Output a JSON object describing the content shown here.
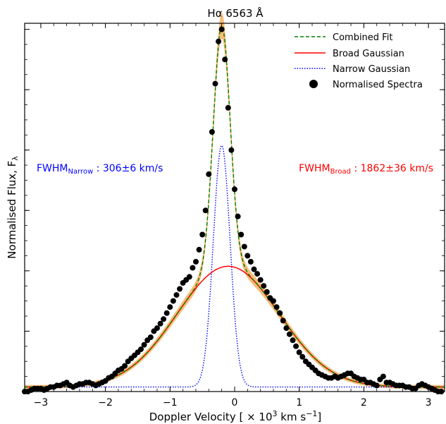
{
  "chart_data": {
    "type": "line",
    "title": "Hα 6563 Å",
    "xlabel_prefix": "Doppler Velocity [ × 10",
    "xlabel_sup": "3",
    "xlabel_suffix": " km s",
    "xlabel_sup2": "−1",
    "xlabel_end": "]",
    "ylabel_main": "Normalised Flux, F",
    "ylabel_sub": "λ",
    "xlim": [
      -3.25,
      3.25
    ],
    "ylim": [
      0.0,
      1.22
    ],
    "x_ticks": [
      -3,
      -2,
      -1,
      0,
      1,
      2,
      3
    ],
    "x_tick_labels": [
      "−3",
      "−2",
      "−1",
      "0",
      "1",
      "2",
      "3"
    ],
    "y_tick_values": [
      0.2,
      0.4,
      0.6,
      0.8,
      1.0,
      1.2
    ],
    "legend": [
      {
        "label": "Combined Fit",
        "color": "#008000",
        "style": "dashed"
      },
      {
        "label": "Broad Gaussian",
        "color": "#ff0000",
        "style": "solid"
      },
      {
        "label": "Narrow Gaussian",
        "color": "#0000ff",
        "style": "dotted"
      },
      {
        "label": "Normalised Spectra",
        "color": "#000000",
        "style": "marker"
      }
    ],
    "legend_position": "top-right",
    "annotations": {
      "narrow": {
        "main": "FWHM",
        "sub": "Narrow",
        "rest": " : 306±6 km/s",
        "color": "#0000ff"
      },
      "broad": {
        "main": "FWHM",
        "sub": "Broad",
        "rest": " : 1862±36 km/s",
        "color": "#ff0000"
      }
    },
    "model": {
      "baseline": 0.015,
      "broad": {
        "center": -0.1,
        "fwhm": 1.862,
        "amplitude": 0.4
      },
      "narrow": {
        "center": -0.2,
        "fwhm": 0.306,
        "amplitude": 0.8
      },
      "uncertainty_band_color": "#f4a040"
    },
    "series": [
      {
        "name": "Normalised Spectra",
        "type": "scatter",
        "x": [
          -3.25,
          -3.2,
          -3.15,
          -3.1,
          -3.05,
          -3.0,
          -2.95,
          -2.9,
          -2.85,
          -2.8,
          -2.75,
          -2.7,
          -2.65,
          -2.6,
          -2.55,
          -2.5,
          -2.45,
          -2.4,
          -2.35,
          -2.3,
          -2.25,
          -2.2,
          -2.15,
          -2.1,
          -2.05,
          -2.0,
          -1.95,
          -1.9,
          -1.85,
          -1.8,
          -1.75,
          -1.7,
          -1.65,
          -1.6,
          -1.55,
          -1.5,
          -1.45,
          -1.4,
          -1.35,
          -1.3,
          -1.25,
          -1.2,
          -1.15,
          -1.1,
          -1.05,
          -1.0,
          -0.95,
          -0.9,
          -0.85,
          -0.8,
          -0.75,
          -0.7,
          -0.65,
          -0.6,
          -0.55,
          -0.5,
          -0.45,
          -0.4,
          -0.35,
          -0.3,
          -0.25,
          -0.2,
          -0.15,
          -0.1,
          -0.05,
          0.0,
          0.05,
          0.1,
          0.15,
          0.2,
          0.25,
          0.3,
          0.35,
          0.4,
          0.45,
          0.5,
          0.55,
          0.6,
          0.65,
          0.7,
          0.75,
          0.8,
          0.85,
          0.9,
          0.95,
          1.0,
          1.05,
          1.1,
          1.15,
          1.2,
          1.25,
          1.3,
          1.35,
          1.4,
          1.45,
          1.5,
          1.55,
          1.6,
          1.65,
          1.7,
          1.75,
          1.8,
          1.85,
          1.9,
          1.95,
          2.0,
          2.05,
          2.1,
          2.15,
          2.2,
          2.25,
          2.3,
          2.35,
          2.4,
          2.45,
          2.5,
          2.55,
          2.6,
          2.65,
          2.7,
          2.75,
          2.8,
          2.85,
          2.9,
          2.95,
          3.0,
          3.05,
          3.1,
          3.15,
          3.2
        ],
        "y": [
          0.0,
          0.0,
          0.005,
          0.01,
          0.01,
          0.01,
          0.005,
          0.01,
          0.015,
          0.015,
          0.02,
          0.02,
          0.025,
          0.03,
          0.02,
          0.015,
          0.02,
          0.025,
          0.025,
          0.03,
          0.03,
          0.025,
          0.02,
          0.025,
          0.03,
          0.035,
          0.045,
          0.05,
          0.06,
          0.07,
          0.075,
          0.085,
          0.1,
          0.11,
          0.12,
          0.13,
          0.14,
          0.155,
          0.17,
          0.18,
          0.2,
          0.21,
          0.225,
          0.24,
          0.26,
          0.28,
          0.3,
          0.32,
          0.34,
          0.36,
          0.37,
          0.38,
          0.41,
          0.43,
          0.47,
          0.52,
          0.6,
          0.72,
          0.86,
          1.02,
          1.16,
          1.2,
          1.1,
          0.94,
          0.8,
          0.67,
          0.58,
          0.52,
          0.48,
          0.45,
          0.43,
          0.405,
          0.39,
          0.37,
          0.35,
          0.33,
          0.31,
          0.3,
          0.28,
          0.26,
          0.235,
          0.21,
          0.19,
          0.17,
          0.15,
          0.13,
          0.115,
          0.1,
          0.09,
          0.08,
          0.07,
          0.06,
          0.055,
          0.05,
          0.045,
          0.045,
          0.05,
          0.045,
          0.05,
          0.055,
          0.06,
          0.06,
          0.05,
          0.045,
          0.04,
          0.04,
          0.03,
          0.03,
          0.025,
          0.02,
          0.04,
          0.05,
          0.03,
          0.03,
          0.025,
          0.02,
          0.02,
          0.02,
          0.015,
          0.015,
          0.01,
          0.01,
          0.02,
          0.025,
          0.02,
          0.015,
          0.01,
          0.005,
          0.0,
          0.0
        ]
      }
    ]
  }
}
